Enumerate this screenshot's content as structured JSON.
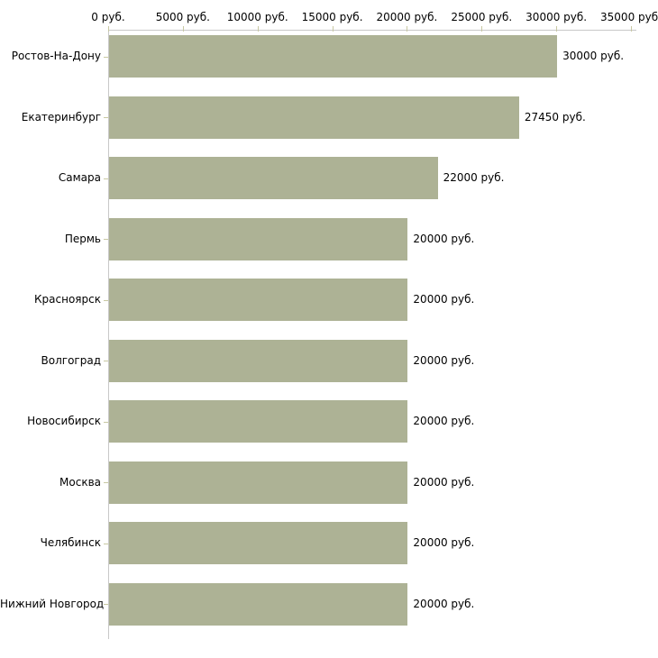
{
  "chart_data": {
    "type": "bar",
    "orientation": "horizontal",
    "title": "",
    "xlabel": "",
    "ylabel": "",
    "legend": "none",
    "grid": "off",
    "categories": [
      "Ростов-На-Дону",
      "Екатеринбург",
      "Самара",
      "Пермь",
      "Красноярск",
      "Волгоград",
      "Новосибирск",
      "Москва",
      "Челябинск",
      "Нижний Новгород"
    ],
    "values": [
      30000,
      27450,
      22000,
      20000,
      20000,
      20000,
      20000,
      20000,
      20000,
      20000
    ],
    "value_labels": [
      "30000 руб.",
      "27450 руб.",
      "22000 руб.",
      "20000 руб.",
      "20000 руб.",
      "20000 руб.",
      "20000 руб.",
      "20000 руб.",
      "20000 руб.",
      "20000 руб."
    ],
    "x_tick_values": [
      0,
      5000,
      10000,
      15000,
      20000,
      25000,
      30000,
      35000
    ],
    "x_tick_labels": [
      "0 руб.",
      "5000 руб.",
      "10000 руб.",
      "15000 руб.",
      "20000 руб.",
      "25000 руб.",
      "30000 руб.",
      "35000 руб."
    ],
    "xlim": [
      0,
      35000
    ],
    "colors": {
      "bar": "#adb295",
      "axis_line": "#c8c8c8",
      "tick_mark": "#c8c8a2",
      "text": "#000000",
      "background": "#ffffff"
    }
  }
}
